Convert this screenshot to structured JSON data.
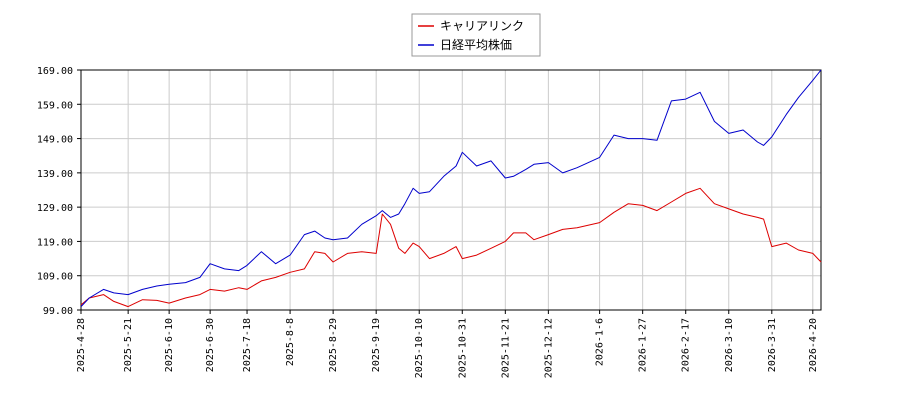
{
  "chart_data": {
    "type": "line",
    "legend_placement": "top-center",
    "grid": true,
    "ylim": [
      99,
      169
    ],
    "yticks": [
      "99.00",
      "109.00",
      "119.00",
      "129.00",
      "139.00",
      "149.00",
      "159.00",
      "169.00"
    ],
    "x_start": "2025-04-28",
    "x_end": "2026-04-24",
    "xticks": [
      {
        "date": "2025-04-28",
        "label": "2025-4-28"
      },
      {
        "date": "2025-05-21",
        "label": "2025-5-21"
      },
      {
        "date": "2025-06-10",
        "label": "2025-6-10"
      },
      {
        "date": "2025-06-30",
        "label": "2025-6-30"
      },
      {
        "date": "2025-07-18",
        "label": "2025-7-18"
      },
      {
        "date": "2025-08-08",
        "label": "2025-8-8"
      },
      {
        "date": "2025-08-29",
        "label": "2025-8-29"
      },
      {
        "date": "2025-09-19",
        "label": "2025-9-19"
      },
      {
        "date": "2025-10-10",
        "label": "2025-10-10"
      },
      {
        "date": "2025-10-31",
        "label": "2025-10-31"
      },
      {
        "date": "2025-11-21",
        "label": "2025-11-21"
      },
      {
        "date": "2025-12-12",
        "label": "2025-12-12"
      },
      {
        "date": "2026-01-06",
        "label": "2026-1-6"
      },
      {
        "date": "2026-01-27",
        "label": "2026-1-27"
      },
      {
        "date": "2026-02-17",
        "label": "2026-2-17"
      },
      {
        "date": "2026-03-10",
        "label": "2026-3-10"
      },
      {
        "date": "2026-03-31",
        "label": "2026-3-31"
      },
      {
        "date": "2026-04-20",
        "label": "2026-4-20"
      }
    ],
    "series": [
      {
        "name": "キャリアリンク",
        "color": "#dd0000",
        "points": [
          [
            "2025-04-28",
            100.5
          ],
          [
            "2025-05-02",
            102.5
          ],
          [
            "2025-05-09",
            103.5
          ],
          [
            "2025-05-14",
            101.5
          ],
          [
            "2025-05-21",
            100.0
          ],
          [
            "2025-05-28",
            102.0
          ],
          [
            "2025-06-04",
            101.8
          ],
          [
            "2025-06-10",
            101.0
          ],
          [
            "2025-06-18",
            102.5
          ],
          [
            "2025-06-25",
            103.5
          ],
          [
            "2025-06-30",
            105.0
          ],
          [
            "2025-07-07",
            104.5
          ],
          [
            "2025-07-14",
            105.5
          ],
          [
            "2025-07-18",
            105.0
          ],
          [
            "2025-07-25",
            107.5
          ],
          [
            "2025-08-01",
            108.5
          ],
          [
            "2025-08-08",
            110.0
          ],
          [
            "2025-08-15",
            111.0
          ],
          [
            "2025-08-20",
            116.0
          ],
          [
            "2025-08-25",
            115.5
          ],
          [
            "2025-08-29",
            113.0
          ],
          [
            "2025-09-05",
            115.5
          ],
          [
            "2025-09-12",
            116.0
          ],
          [
            "2025-09-19",
            115.5
          ],
          [
            "2025-09-22",
            127.0
          ],
          [
            "2025-09-26",
            124.0
          ],
          [
            "2025-09-30",
            117.0
          ],
          [
            "2025-10-03",
            115.5
          ],
          [
            "2025-10-07",
            118.5
          ],
          [
            "2025-10-10",
            117.5
          ],
          [
            "2025-10-15",
            114.0
          ],
          [
            "2025-10-22",
            115.5
          ],
          [
            "2025-10-28",
            117.5
          ],
          [
            "2025-10-31",
            114.0
          ],
          [
            "2025-11-07",
            115.0
          ],
          [
            "2025-11-14",
            117.0
          ],
          [
            "2025-11-21",
            119.0
          ],
          [
            "2025-11-25",
            121.5
          ],
          [
            "2025-12-01",
            121.5
          ],
          [
            "2025-12-05",
            119.5
          ],
          [
            "2025-12-12",
            121.0
          ],
          [
            "2025-12-19",
            122.5
          ],
          [
            "2025-12-26",
            123.0
          ],
          [
            "2026-01-06",
            124.5
          ],
          [
            "2026-01-13",
            127.5
          ],
          [
            "2026-01-20",
            130.0
          ],
          [
            "2026-01-27",
            129.5
          ],
          [
            "2026-02-03",
            128.0
          ],
          [
            "2026-02-10",
            130.5
          ],
          [
            "2026-02-17",
            133.0
          ],
          [
            "2026-02-24",
            134.5
          ],
          [
            "2026-03-03",
            130.0
          ],
          [
            "2026-03-10",
            128.5
          ],
          [
            "2026-03-17",
            127.0
          ],
          [
            "2026-03-24",
            126.0
          ],
          [
            "2026-03-27",
            125.5
          ],
          [
            "2026-03-31",
            117.5
          ],
          [
            "2026-04-07",
            118.5
          ],
          [
            "2026-04-13",
            116.5
          ],
          [
            "2026-04-20",
            115.5
          ],
          [
            "2026-04-24",
            113.0
          ]
        ]
      },
      {
        "name": "日経平均株価",
        "color": "#0000cc",
        "points": [
          [
            "2025-04-28",
            100.0
          ],
          [
            "2025-05-02",
            102.5
          ],
          [
            "2025-05-09",
            105.0
          ],
          [
            "2025-05-14",
            104.0
          ],
          [
            "2025-05-21",
            103.5
          ],
          [
            "2025-05-28",
            105.0
          ],
          [
            "2025-06-04",
            106.0
          ],
          [
            "2025-06-10",
            106.5
          ],
          [
            "2025-06-18",
            107.0
          ],
          [
            "2025-06-25",
            108.5
          ],
          [
            "2025-06-30",
            112.5
          ],
          [
            "2025-07-07",
            111.0
          ],
          [
            "2025-07-14",
            110.5
          ],
          [
            "2025-07-18",
            112.0
          ],
          [
            "2025-07-25",
            116.0
          ],
          [
            "2025-08-01",
            112.5
          ],
          [
            "2025-08-08",
            115.0
          ],
          [
            "2025-08-15",
            121.0
          ],
          [
            "2025-08-20",
            122.0
          ],
          [
            "2025-08-25",
            120.0
          ],
          [
            "2025-08-29",
            119.5
          ],
          [
            "2025-09-05",
            120.0
          ],
          [
            "2025-09-12",
            124.0
          ],
          [
            "2025-09-19",
            126.5
          ],
          [
            "2025-09-22",
            128.0
          ],
          [
            "2025-09-26",
            126.0
          ],
          [
            "2025-09-30",
            127.0
          ],
          [
            "2025-10-03",
            130.0
          ],
          [
            "2025-10-07",
            134.5
          ],
          [
            "2025-10-10",
            133.0
          ],
          [
            "2025-10-15",
            133.5
          ],
          [
            "2025-10-22",
            138.0
          ],
          [
            "2025-10-28",
            141.0
          ],
          [
            "2025-10-31",
            145.0
          ],
          [
            "2025-11-07",
            141.0
          ],
          [
            "2025-11-14",
            142.5
          ],
          [
            "2025-11-21",
            137.5
          ],
          [
            "2025-11-25",
            138.0
          ],
          [
            "2025-12-01",
            140.0
          ],
          [
            "2025-12-05",
            141.5
          ],
          [
            "2025-12-12",
            142.0
          ],
          [
            "2025-12-19",
            139.0
          ],
          [
            "2025-12-26",
            140.5
          ],
          [
            "2026-01-06",
            143.5
          ],
          [
            "2026-01-13",
            150.0
          ],
          [
            "2026-01-20",
            149.0
          ],
          [
            "2026-01-27",
            149.0
          ],
          [
            "2026-02-03",
            148.5
          ],
          [
            "2026-02-10",
            160.0
          ],
          [
            "2026-02-17",
            160.5
          ],
          [
            "2026-02-24",
            162.5
          ],
          [
            "2026-03-03",
            154.0
          ],
          [
            "2026-03-10",
            150.5
          ],
          [
            "2026-03-17",
            151.5
          ],
          [
            "2026-03-24",
            148.0
          ],
          [
            "2026-03-27",
            147.0
          ],
          [
            "2026-03-31",
            149.5
          ],
          [
            "2026-04-07",
            156.0
          ],
          [
            "2026-04-13",
            161.0
          ],
          [
            "2026-04-20",
            166.0
          ],
          [
            "2026-04-24",
            169.0
          ]
        ]
      }
    ]
  }
}
